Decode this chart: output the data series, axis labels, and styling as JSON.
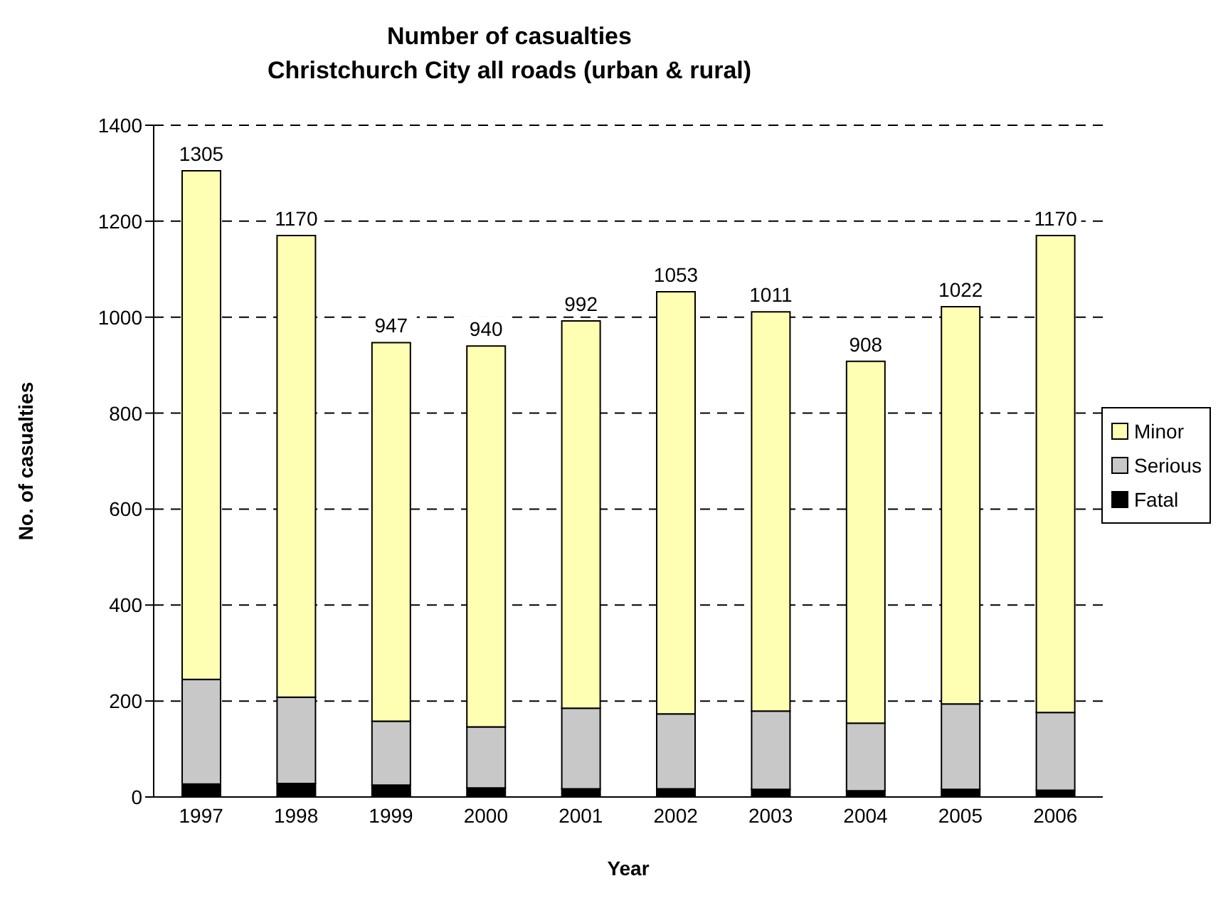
{
  "chart_data": {
    "type": "bar",
    "title": "Number of casualties",
    "subtitle": "Christchurch City all roads (urban & rural)",
    "xlabel": "Year",
    "ylabel": "No. of casualties",
    "categories": [
      "1997",
      "1998",
      "1999",
      "2000",
      "2001",
      "2002",
      "2003",
      "2004",
      "2005",
      "2006"
    ],
    "stacked": true,
    "series": [
      {
        "name": "Fatal",
        "color": "#000000",
        "values": [
          27,
          28,
          25,
          19,
          17,
          17,
          16,
          13,
          16,
          14
        ]
      },
      {
        "name": "Serious",
        "color": "#c8c8c8",
        "values": [
          218,
          180,
          133,
          127,
          168,
          156,
          163,
          141,
          178,
          162
        ]
      },
      {
        "name": "Minor",
        "color": "#ffffb3",
        "values": [
          1060,
          962,
          789,
          794,
          807,
          880,
          832,
          754,
          828,
          994
        ]
      }
    ],
    "totals": [
      "1305",
      "1170",
      "947",
      "940",
      "992",
      "1053",
      "1011",
      "908",
      "1022",
      "1170"
    ],
    "ylim": [
      0,
      1400
    ],
    "yticks": [
      0,
      200,
      400,
      600,
      800,
      1000,
      1200,
      1400
    ],
    "grid": "y",
    "legend": "right"
  }
}
